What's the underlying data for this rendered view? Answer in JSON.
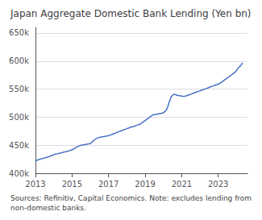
{
  "chart_data": {
    "type": "line",
    "title": "Japan Aggregate Domestic Bank Lending (Yen bn)",
    "footnote": "Sources: Refinitiv, Capital Economics. Note: excludes lending from non-domestic banks.",
    "color": "#4472C4",
    "grid": true,
    "xlim": [
      2013.0,
      2024.6
    ],
    "xticks": [
      2013,
      2015,
      2017,
      2019,
      2021,
      2023
    ],
    "ylim": [
      400000,
      660000
    ],
    "yticks": [
      {
        "value": 400000,
        "label": "400k"
      },
      {
        "value": 450000,
        "label": "450k"
      },
      {
        "value": 500000,
        "label": "500k"
      },
      {
        "value": 550000,
        "label": "550k"
      },
      {
        "value": 600000,
        "label": "600k"
      },
      {
        "value": 650000,
        "label": "650k"
      }
    ],
    "x": [
      2013.0,
      2013.08,
      2013.17,
      2013.25,
      2013.33,
      2013.42,
      2013.5,
      2013.58,
      2013.67,
      2013.75,
      2013.83,
      2013.92,
      2014.0,
      2014.08,
      2014.17,
      2014.25,
      2014.33,
      2014.42,
      2014.5,
      2014.58,
      2014.67,
      2014.75,
      2014.83,
      2014.92,
      2015.0,
      2015.08,
      2015.17,
      2015.25,
      2015.33,
      2015.42,
      2015.5,
      2015.58,
      2015.67,
      2015.75,
      2015.83,
      2015.92,
      2016.0,
      2016.08,
      2016.17,
      2016.25,
      2016.33,
      2016.42,
      2016.5,
      2016.58,
      2016.67,
      2016.75,
      2016.83,
      2016.92,
      2017.0,
      2017.08,
      2017.17,
      2017.25,
      2017.33,
      2017.42,
      2017.5,
      2017.58,
      2017.67,
      2017.75,
      2017.83,
      2017.92,
      2018.0,
      2018.08,
      2018.17,
      2018.25,
      2018.33,
      2018.42,
      2018.5,
      2018.58,
      2018.67,
      2018.75,
      2018.83,
      2018.92,
      2019.0,
      2019.08,
      2019.17,
      2019.25,
      2019.33,
      2019.42,
      2019.5,
      2019.58,
      2019.67,
      2019.75,
      2019.83,
      2019.92,
      2020.0,
      2020.08,
      2020.17,
      2020.25,
      2020.33,
      2020.42,
      2020.5,
      2020.58,
      2020.67,
      2020.75,
      2020.83,
      2020.92,
      2021.0,
      2021.08,
      2021.17,
      2021.25,
      2021.33,
      2021.42,
      2021.5,
      2021.58,
      2021.67,
      2021.75,
      2021.83,
      2021.92,
      2022.0,
      2022.08,
      2022.17,
      2022.25,
      2022.33,
      2022.42,
      2022.5,
      2022.58,
      2022.67,
      2022.75,
      2022.83,
      2022.92,
      2023.0,
      2023.08,
      2023.17,
      2023.25,
      2023.33,
      2023.42,
      2023.5,
      2023.58,
      2023.67,
      2023.75,
      2023.83,
      2023.92,
      2024.0,
      2024.08,
      2024.17,
      2024.25,
      2024.33
    ],
    "values": [
      422000,
      423000,
      424500,
      425000,
      426000,
      426500,
      427500,
      428000,
      429000,
      429500,
      431000,
      432000,
      433000,
      434000,
      434500,
      435000,
      436000,
      436500,
      437500,
      438000,
      438500,
      439000,
      440000,
      441000,
      442000,
      443000,
      445000,
      446500,
      448000,
      449000,
      450000,
      450500,
      451000,
      451500,
      452000,
      452500,
      453000,
      455000,
      458000,
      460000,
      462000,
      463000,
      464000,
      464500,
      465000,
      465500,
      466000,
      466500,
      467000,
      468000,
      469000,
      470000,
      471000,
      472000,
      473500,
      474500,
      475500,
      476500,
      477500,
      478500,
      479500,
      480500,
      481500,
      482500,
      483000,
      484000,
      485000,
      486000,
      487000,
      488000,
      490000,
      492000,
      494000,
      496000,
      498000,
      500000,
      502000,
      504000,
      504500,
      505000,
      505500,
      506000,
      506500,
      507000,
      508000,
      510000,
      513000,
      520000,
      528000,
      536000,
      539000,
      541000,
      540000,
      539000,
      538500,
      538000,
      537500,
      537000,
      537500,
      538000,
      539000,
      540000,
      541000,
      542000,
      543000,
      544000,
      545000,
      546000,
      547000,
      548000,
      549000,
      550000,
      551000,
      552000,
      553000,
      554000,
      555000,
      556000,
      557000,
      558000,
      559000,
      560000,
      562000,
      564000,
      566000,
      568000,
      570000,
      572000,
      574000,
      576000,
      578000,
      580000,
      583000,
      587000,
      590000,
      593000,
      597000
    ]
  }
}
